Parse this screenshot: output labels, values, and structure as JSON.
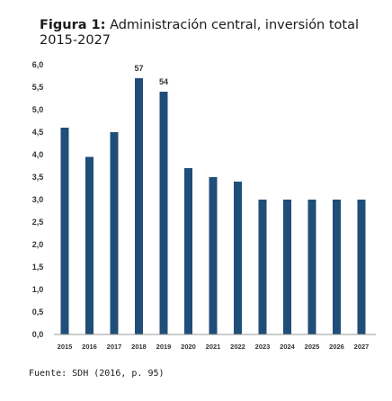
{
  "figure": {
    "label": "Figura 1:",
    "title": "Administración central, inversión total",
    "subtitle": "2015-2027",
    "source": "Fuente: SDH (2016, p. 95)"
  },
  "chart_data": {
    "type": "bar",
    "categories": [
      "2015",
      "2016",
      "2017",
      "2018",
      "2019",
      "2020",
      "2021",
      "2022",
      "2023",
      "2024",
      "2025",
      "2026",
      "2027"
    ],
    "values": [
      46,
      39.5,
      45,
      57,
      54,
      37,
      35,
      34,
      30,
      30,
      30,
      30,
      30
    ],
    "data_labels": {
      "3": "57",
      "4": "54"
    },
    "ytick_labels": [
      "0,0",
      "0,5",
      "1,0",
      "1,5",
      "2,0",
      "2,5",
      "3,0",
      "3,5",
      "4,0",
      "4,5",
      "5,0",
      "5,5",
      "6,0"
    ],
    "ytick_values": [
      0,
      5,
      10,
      15,
      20,
      25,
      30,
      35,
      40,
      45,
      50,
      55,
      60
    ],
    "ylim": [
      0,
      60
    ],
    "bar_color": "#1f4e79",
    "grid": false,
    "legend": "none"
  }
}
